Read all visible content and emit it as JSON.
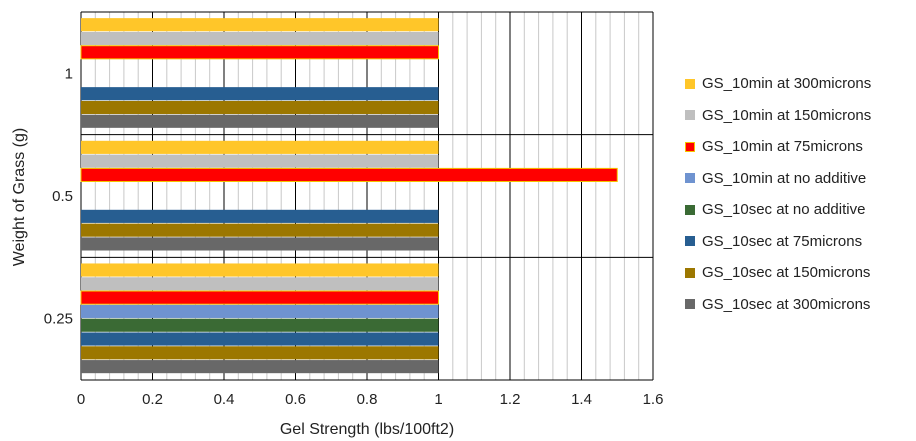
{
  "chart_data": {
    "type": "bar",
    "orientation": "horizontal",
    "title": "",
    "xlabel": "Gel Strength (lbs/100ft2)",
    "ylabel": "Weight of Grass (g)",
    "categories": [
      "0.25",
      "0.5",
      "1"
    ],
    "xlim": [
      0,
      1.6
    ],
    "xticks": [
      "0",
      "0.2",
      "0.4",
      "0.6",
      "0.8",
      "1",
      "1.2",
      "1.4",
      "1.6"
    ],
    "grid": true,
    "legend_position": "right",
    "series": [
      {
        "name": "GS_10min at 300microns",
        "color": "#ffc629",
        "values": [
          1,
          1,
          1
        ]
      },
      {
        "name": "GS_10min at 150microns",
        "color": "#bfbfbf",
        "values": [
          1,
          1,
          1
        ]
      },
      {
        "name": "GS_10min at 75microns",
        "color": "#ff0000",
        "values": [
          1,
          1.5,
          1
        ]
      },
      {
        "name": "GS_10min at no additive",
        "color": "#6f93d0",
        "values": [
          1,
          0,
          0
        ]
      },
      {
        "name": "GS_10sec at no additive",
        "color": "#3a6a34",
        "values": [
          1,
          0,
          0
        ]
      },
      {
        "name": "GS_10sec at 75microns",
        "color": "#275e91",
        "values": [
          1,
          1,
          1
        ]
      },
      {
        "name": "GS_10sec at 150microns",
        "color": "#9c7700",
        "values": [
          1,
          1,
          1
        ]
      },
      {
        "name": "GS_10sec at 300microns",
        "color": "#686868",
        "values": [
          1,
          1,
          1
        ]
      }
    ]
  }
}
